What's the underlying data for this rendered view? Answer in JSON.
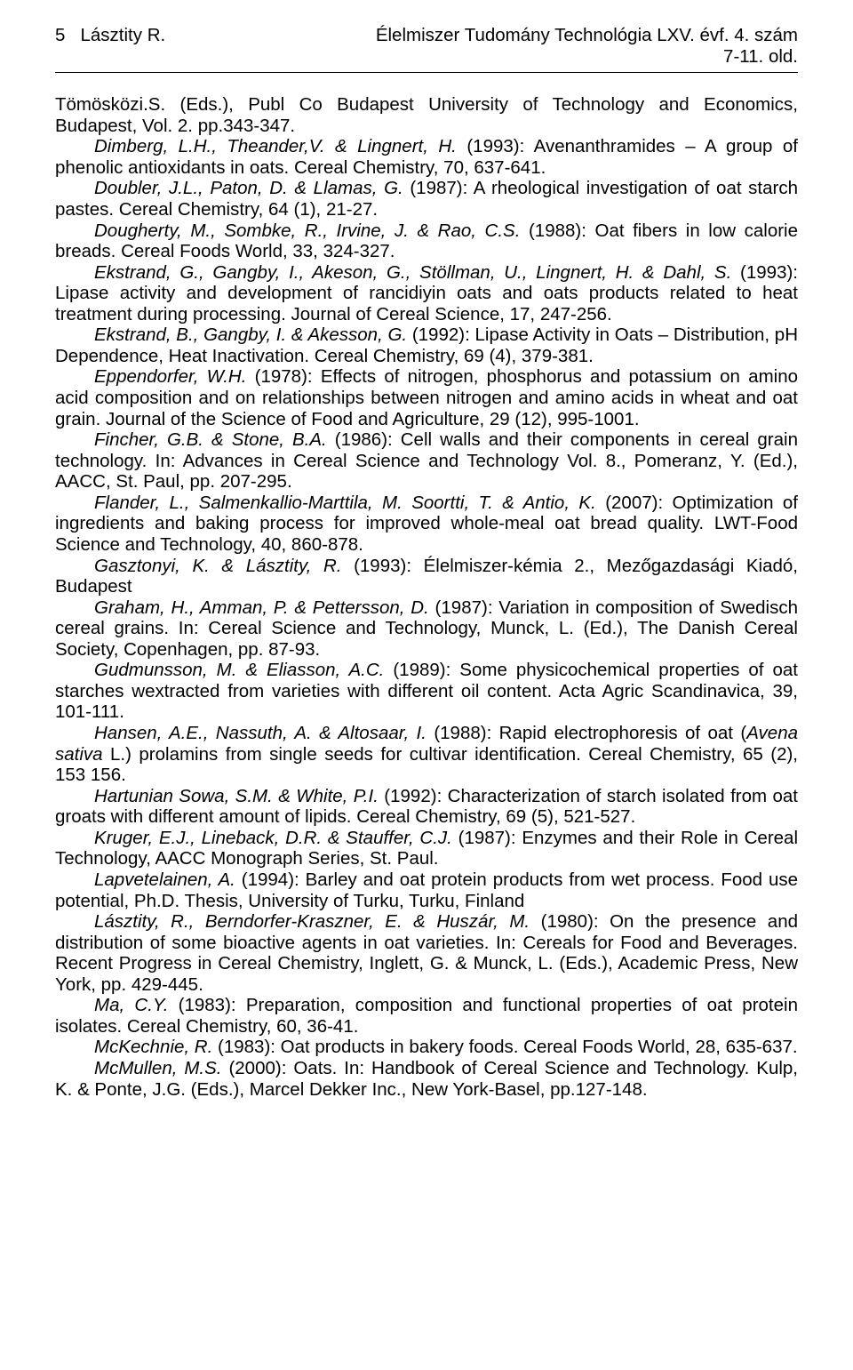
{
  "header": {
    "page_num": "5",
    "author": "Lásztity R.",
    "journal": "Élelmiszer Tudomány Technológia LXV. évf. 4. szám",
    "pages_line": "7-11. old."
  },
  "refs": [
    {
      "lead": "Tömösközi.S. (Eds.), Publ Co Budapest University of Technology and Economics, Budapest, Vol. 2. pp.343-347.",
      "seg_i": "",
      "tail": ""
    },
    {
      "lead": "",
      "seg_i": "Dimberg, L.H., Theander,V. & Lingnert, H.",
      "tail": " (1993): Avenanthramides – A group of phenolic antioxidants in oats. Cereal Chemistry, 70, 637-641."
    },
    {
      "lead": "",
      "seg_i": "Doubler, J.L., Paton, D. & Llamas, G.",
      "tail": " (1987): A rheological investigation of oat starch pastes. Cereal Chemistry, 64 (1), 21-27."
    },
    {
      "lead": "",
      "seg_i": "Dougherty, M., Sombke, R., Irvine, J. & Rao, C.S.",
      "tail": " (1988): Oat fibers in low calorie breads. Cereal Foods World, 33, 324-327."
    },
    {
      "lead": "",
      "seg_i": "Ekstrand, G., Gangby, I., Akeson, G., Stöllman, U., Lingnert, H. & Dahl, S.",
      "tail": " (1993): Lipase activity and development of rancidiyin oats and oats products related to heat treatment during processing. Journal of Cereal Science, 17, 247-256."
    },
    {
      "lead": "",
      "seg_i": "Ekstrand, B., Gangby, I. & Akesson, G.",
      "tail": " (1992): Lipase Activity in Oats – Distribution, pH Dependence, Heat Inactivation. Cereal Chemistry, 69 (4), 379-381."
    },
    {
      "lead": "",
      "seg_i": "Eppendorfer, W.H.",
      "tail": " (1978): Effects of nitrogen, phosphorus and potassium on amino acid composition and on relationships between nitrogen and amino acids in wheat and oat grain. Journal of the Science of Food and Agriculture, 29 (12), 995-1001."
    },
    {
      "lead": "",
      "seg_i": "Fincher, G.B. & Stone, B.A.",
      "tail": " (1986): Cell walls and their components in cereal grain technology. In: Advances in Cereal Science and Technology Vol. 8., Pomeranz, Y. (Ed.), AACC, St. Paul, pp. 207-295."
    },
    {
      "lead": "",
      "seg_i": "Flander, L., Salmenkallio-Marttila, M. Soortti, T. & Antio, K.",
      "tail": " (2007): Optimization of ingredients and baking process for improved whole-meal oat bread quality. LWT-Food Science and Technology, 40, 860-878."
    },
    {
      "lead": "",
      "seg_i": "Gasztonyi, K. & Lásztity, R.",
      "tail": " (1993): Élelmiszer-kémia 2., Mezőgazdasági Kiadó, Budapest"
    },
    {
      "lead": "",
      "seg_i": "Graham, H., Amman, P. & Pettersson, D.",
      "tail": " (1987): Variation in composition of Swedisch cereal grains. In: Cereal Science and Technology, Munck, L. (Ed.), The Danish Cereal Society, Copenhagen, pp. 87-93."
    },
    {
      "lead": "",
      "seg_i": "Gudmunsson, M. & Eliasson, A.C.",
      "tail": " (1989): Some physicochemical properties of oat starches wextracted from varieties with different oil content. Acta Agric Scandinavica, 39, 101-111."
    },
    {
      "lead": "",
      "seg_i": "Hansen, A.E., Nassuth, A. & Altosaar, I.",
      "tail": " (1988): Rapid electrophoresis of oat (",
      "seg2_i": "Avena sativa",
      "tail2": " L.) prolamins from single seeds for cultivar identification. Cereal Chemistry, 65 (2), 153 156."
    },
    {
      "lead": "",
      "seg_i": "Hartunian Sowa, S.M. & White, P.I.",
      "tail": " (1992): Characterization of starch isolated from oat groats with different amount of lipids. Cereal Chemistry, 69 (5), 521-527."
    },
    {
      "lead": "",
      "seg_i": "Kruger, E.J., Lineback, D.R. & Stauffer, C.J.",
      "tail": " (1987): Enzymes and their Role in Cereal Technology, AACC Monograph Series, St. Paul."
    },
    {
      "lead": "",
      "seg_i": "Lapvetelainen, A.",
      "tail": " (1994): Barley and oat protein products from wet process. Food use potential, Ph.D. Thesis, University of Turku, Turku, Finland"
    },
    {
      "lead": "",
      "seg_i": "Lásztity, R., Berndorfer-Kraszner, E. & Huszár, M.",
      "tail": " (1980): On the presence and distribution of some bioactive agents in oat varieties. In: Cereals for Food and Beverages. Recent Progress in Cereal Chemistry, Inglett, G. & Munck, L. (Eds.), Academic Press, New York, pp. 429-445."
    },
    {
      "lead": "",
      "seg_i": "Ma, C.Y.",
      "tail": " (1983): Preparation, composition and functional properties of oat protein isolates. Cereal Chemistry, 60, 36-41."
    },
    {
      "lead": "",
      "seg_i": "McKechnie, R.",
      "tail": " (1983): Oat products in bakery foods. Cereal Foods World, 28, 635-637."
    },
    {
      "lead": "",
      "seg_i": "McMullen, M.S.",
      "tail": " (2000): Oats. In: Handbook of Cereal Science and Technology. Kulp, K. & Ponte, J.G. (Eds.), Marcel Dekker Inc., New York-Basel, pp.127-148."
    }
  ]
}
